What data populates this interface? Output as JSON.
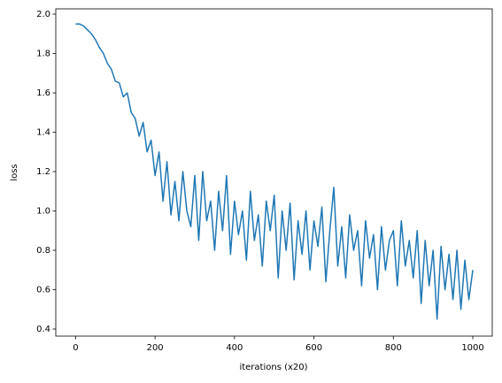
{
  "chart_data": {
    "type": "line",
    "xlabel": "iterations (x20)",
    "ylabel": "loss",
    "x": [
      0,
      10,
      20,
      30,
      40,
      50,
      60,
      70,
      80,
      90,
      100,
      110,
      120,
      130,
      140,
      150,
      160,
      170,
      180,
      190,
      200,
      210,
      220,
      230,
      240,
      250,
      260,
      270,
      280,
      290,
      300,
      310,
      320,
      330,
      340,
      350,
      360,
      370,
      380,
      390,
      400,
      410,
      420,
      430,
      440,
      450,
      460,
      470,
      480,
      490,
      500,
      510,
      520,
      530,
      540,
      550,
      560,
      570,
      580,
      590,
      600,
      610,
      620,
      630,
      640,
      650,
      660,
      670,
      680,
      690,
      700,
      710,
      720,
      730,
      740,
      750,
      760,
      770,
      780,
      790,
      800,
      810,
      820,
      830,
      840,
      850,
      860,
      870,
      880,
      890,
      900,
      910,
      920,
      930,
      940,
      950,
      960,
      970,
      980,
      990,
      1000
    ],
    "series": [
      {
        "color": "#1f77b4",
        "values": [
          1.95,
          1.95,
          1.94,
          1.92,
          1.9,
          1.87,
          1.83,
          1.8,
          1.75,
          1.72,
          1.66,
          1.65,
          1.58,
          1.6,
          1.5,
          1.47,
          1.38,
          1.45,
          1.3,
          1.36,
          1.18,
          1.3,
          1.05,
          1.25,
          0.98,
          1.15,
          0.95,
          1.2,
          1.0,
          0.92,
          1.18,
          0.85,
          1.2,
          0.95,
          1.05,
          0.8,
          1.1,
          0.9,
          1.18,
          0.78,
          1.05,
          0.88,
          1.0,
          0.75,
          1.1,
          0.85,
          0.98,
          0.72,
          1.05,
          0.9,
          1.08,
          0.66,
          1.0,
          0.8,
          1.04,
          0.65,
          0.95,
          0.78,
          1.0,
          0.7,
          0.95,
          0.82,
          1.02,
          0.64,
          0.9,
          1.12,
          0.72,
          0.92,
          0.66,
          0.98,
          0.8,
          0.9,
          0.62,
          0.95,
          0.76,
          0.88,
          0.6,
          0.92,
          0.7,
          0.85,
          0.9,
          0.62,
          0.95,
          0.72,
          0.85,
          0.66,
          0.9,
          0.53,
          0.85,
          0.62,
          0.8,
          0.45,
          0.82,
          0.6,
          0.78,
          0.55,
          0.8,
          0.5,
          0.75,
          0.55,
          0.7
        ]
      }
    ],
    "xlim": [
      -49.95,
      1048.95
    ],
    "xticks": [
      0,
      200,
      400,
      600,
      800,
      1000
    ],
    "ylim": [
      0.364,
      2.027
    ],
    "yticks": [
      0.4,
      0.6,
      0.8,
      {
        "value": 1.0,
        "label": "1.0"
      },
      1.2,
      1.4,
      1.6,
      1.8,
      {
        "value": 2.0,
        "label": "2.0"
      }
    ]
  }
}
